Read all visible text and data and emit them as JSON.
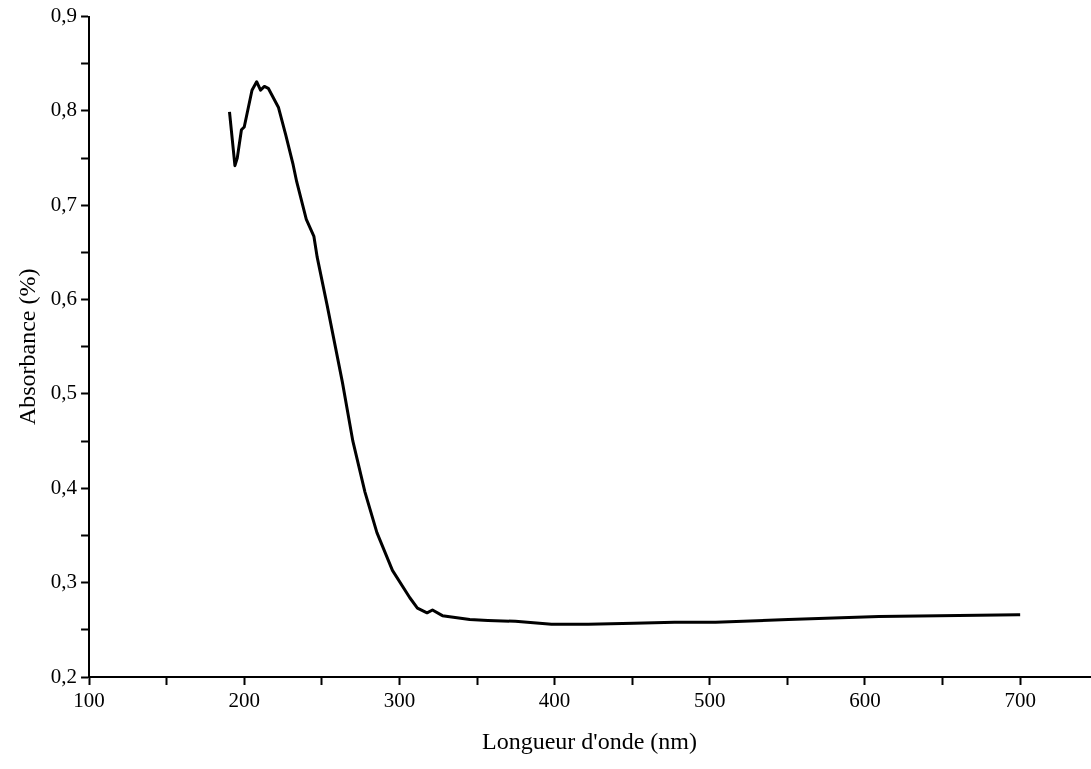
{
  "chart_data": {
    "type": "line",
    "xlabel": "Longueur d'onde (nm)",
    "ylabel": "Absorbance (%)",
    "xlim": [
      100,
      745
    ],
    "ylim": [
      0.2,
      0.9
    ],
    "xticks": [
      100,
      {
        "value": 150,
        "label": null
      },
      200,
      {
        "value": 250,
        "label": null
      },
      300,
      {
        "value": 350,
        "label": null
      },
      400,
      {
        "value": 450,
        "label": null
      },
      500,
      {
        "value": 550,
        "label": null
      },
      600,
      {
        "value": 650,
        "label": null
      },
      700
    ],
    "yticks": [
      {
        "value": 0.2,
        "label": "0,2"
      },
      {
        "value": 0.25,
        "label": null
      },
      {
        "value": 0.3,
        "label": "0,3"
      },
      {
        "value": 0.35,
        "label": null
      },
      {
        "value": 0.4,
        "label": "0,4"
      },
      {
        "value": 0.45,
        "label": null
      },
      {
        "value": 0.5,
        "label": "0,5"
      },
      {
        "value": 0.55,
        "label": null
      },
      {
        "value": 0.6,
        "label": "0,6"
      },
      {
        "value": 0.65,
        "label": null
      },
      {
        "value": 0.7,
        "label": "0,7"
      },
      {
        "value": 0.75,
        "label": null
      },
      {
        "value": 0.8,
        "label": "0,8"
      },
      {
        "value": 0.85,
        "label": null
      },
      {
        "value": 0.9,
        "label": "0,9"
      }
    ],
    "x": [
      190.5,
      194,
      195.5,
      198.2,
      200,
      205,
      208,
      210.5,
      213,
      215.5,
      222,
      226.7,
      231.5,
      233.8,
      240,
      244.9,
      247,
      253.3,
      263.3,
      270,
      277.8,
      285.5,
      295.5,
      306.7,
      311.6,
      317.8,
      321.3,
      327.7,
      345.3,
      357,
      374.7,
      398,
      421.6,
      451,
      477.3,
      503.7,
      550.6,
      609,
      700
    ],
    "series": [
      {
        "color": "#000000",
        "values": [
          0.799,
          0.742,
          0.75,
          0.78,
          0.783,
          0.822,
          0.831,
          0.822,
          0.826,
          0.824,
          0.804,
          0.775,
          0.743,
          0.725,
          0.685,
          0.667,
          0.645,
          0.595,
          0.512,
          0.45,
          0.396,
          0.353,
          0.313,
          0.284,
          0.273,
          0.268,
          0.271,
          0.265,
          0.261,
          0.26,
          0.259,
          0.256,
          0.256,
          0.257,
          0.258,
          0.258,
          0.261,
          0.264,
          0.266
        ]
      }
    ]
  }
}
